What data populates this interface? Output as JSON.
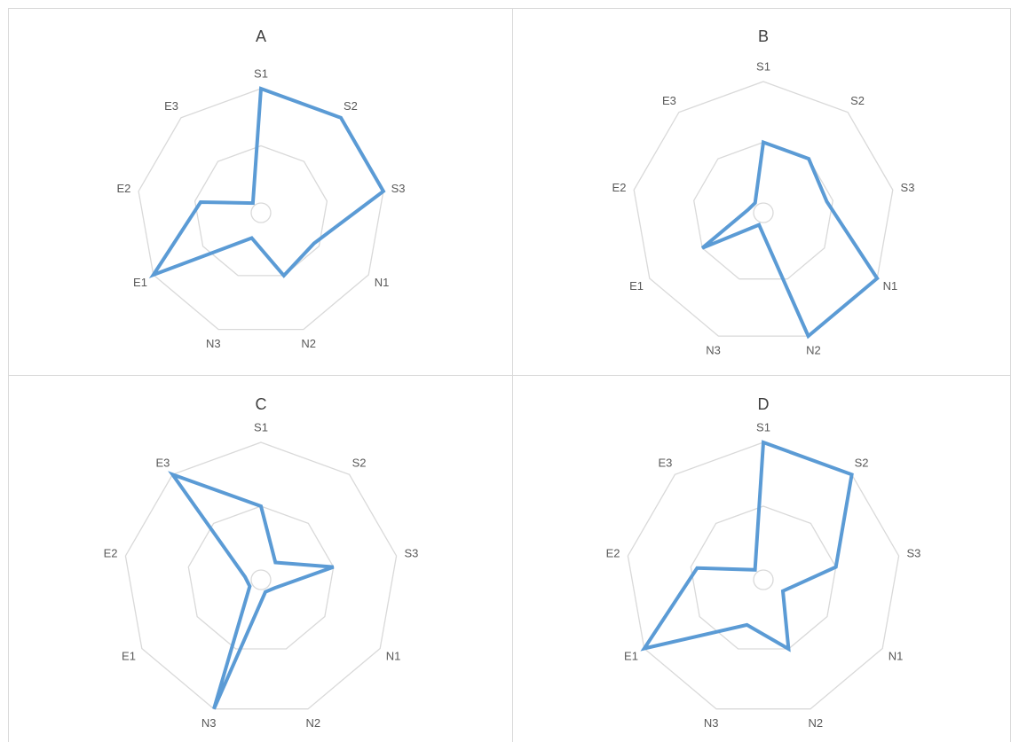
{
  "colors": {
    "series": "#5b9bd5",
    "grid": "#d9d9d9",
    "text": "#595959"
  },
  "chart_data": [
    {
      "type": "radar",
      "title": "A",
      "categories": [
        "S1",
        "S2",
        "S3",
        "N1",
        "N2",
        "N3",
        "E1",
        "E2",
        "E3"
      ],
      "series": [
        {
          "values": [
            2.0,
            2.0,
            2.0,
            0.9,
            1.0,
            0.3,
            2.0,
            0.9,
            0.05
          ]
        }
      ],
      "ylim": [
        0,
        2
      ],
      "gridlines": [
        1,
        2
      ]
    },
    {
      "type": "radar",
      "title": "B",
      "categories": [
        "S1",
        "S2",
        "S3",
        "N1",
        "N2",
        "N3",
        "E1",
        "E2",
        "E3"
      ],
      "series": [
        {
          "values": [
            1.0,
            1.0,
            0.9,
            2.0,
            2.0,
            0.05,
            1.0,
            0.1,
            0.05
          ]
        }
      ],
      "ylim": [
        0,
        2
      ],
      "gridlines": [
        1,
        2
      ]
    },
    {
      "type": "radar",
      "title": "C",
      "categories": [
        "S1",
        "S2",
        "S3",
        "N1",
        "N2",
        "N3",
        "E1",
        "E2",
        "E3"
      ],
      "series": [
        {
          "values": [
            1.0,
            0.2,
            1.0,
            0.1,
            0.05,
            2.0,
            0.05,
            0.1,
            2.0
          ]
        }
      ],
      "ylim": [
        0,
        2
      ],
      "gridlines": [
        1,
        2
      ]
    },
    {
      "type": "radar",
      "title": "D",
      "categories": [
        "S1",
        "S2",
        "S3",
        "N1",
        "N2",
        "N3",
        "E1",
        "E2",
        "E3"
      ],
      "series": [
        {
          "values": [
            2.0,
            2.0,
            1.0,
            0.2,
            1.0,
            0.6,
            2.0,
            0.9,
            0.05
          ]
        }
      ],
      "ylim": [
        0,
        2
      ],
      "gridlines": [
        1,
        2
      ]
    }
  ]
}
